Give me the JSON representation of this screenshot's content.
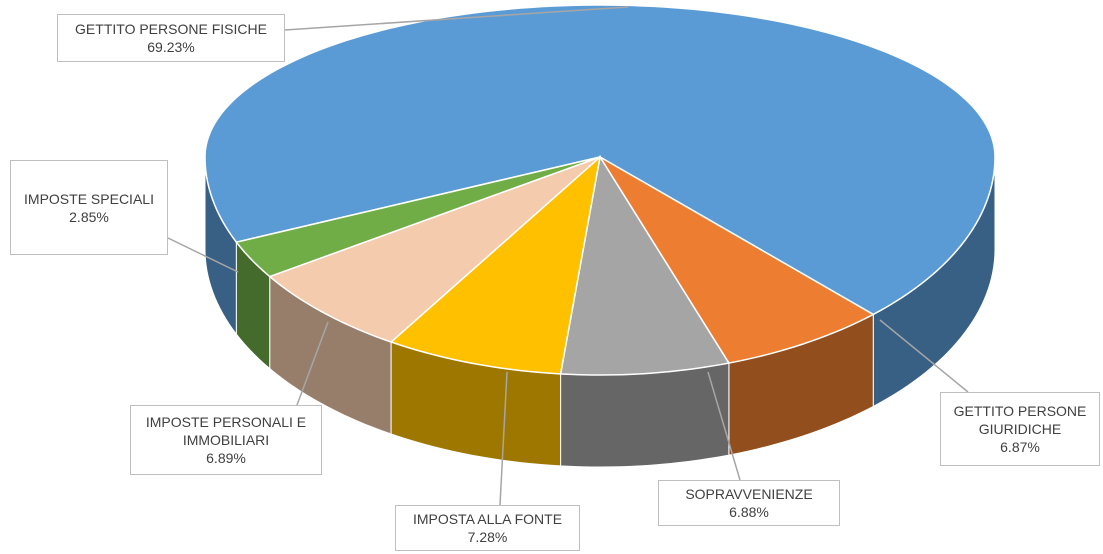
{
  "chart_data": {
    "type": "pie",
    "categories": [
      "GETTITO PERSONE FISICHE",
      "GETTITO PERSONE GIURIDICHE",
      "SOPRAVVENIENZE",
      "IMPOSTA ALLA FONTE",
      "IMPOSTE PERSONALI E IMMOBILIARI",
      "IMPOSTE SPECIALI"
    ],
    "values": [
      69.23,
      6.87,
      6.88,
      7.28,
      6.89,
      2.85
    ],
    "value_labels": [
      "69.23%",
      "6.87%",
      "6.88%",
      "7.28%",
      "6.89%",
      "2.85%"
    ],
    "colors": [
      "#5b9bd5",
      "#ed7d31",
      "#a5a5a5",
      "#ffc000",
      "#f4cbad",
      "#70ad47"
    ]
  }
}
